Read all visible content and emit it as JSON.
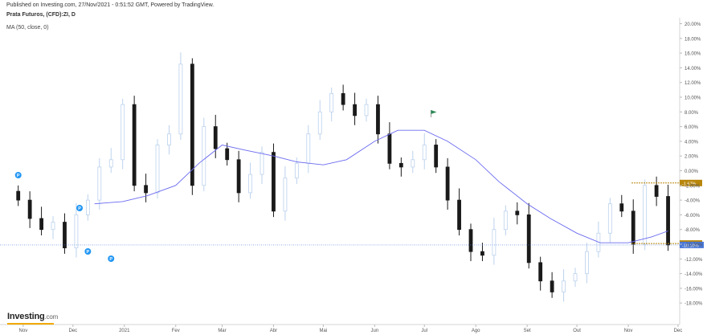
{
  "header": {
    "published": "Published on Investing.com, 27/Nov/2021 - 0:51:52 GMT, Powered by TradingView.",
    "instrument": "Prata Futuros, (CFD):ZI, D",
    "indicator": "MA (50, close, 0)"
  },
  "logo": {
    "brand": "Investing",
    "suffix": ".com"
  },
  "colors": {
    "up_candle": "#bcd2ee",
    "down_candle": "#1a1a1a",
    "ma_line": "#6a6af0",
    "last_price": "#4a78d8",
    "marker_level": "#b8860b",
    "event_marker": "#2196f3",
    "flag": "#2e8b57"
  },
  "chart_data": {
    "type": "line",
    "title": "Prata Futuros, (CFD):ZI, D",
    "y_unit": "%",
    "ylim": [
      -18.5,
      21
    ],
    "y_ticks": [
      "20.00%",
      "18.00%",
      "16.00%",
      "14.00%",
      "12.00%",
      "10.00%",
      "8.00%",
      "6.00%",
      "4.00%",
      "2.00%",
      "0.00%",
      "-2.00%",
      "-4.00%",
      "-6.00%",
      "-8.00%",
      "-10.00%",
      "-12.00%",
      "-14.00%",
      "-16.00%",
      "-18.00%"
    ],
    "x_labels": [
      "Nov",
      "Dec",
      "2021",
      "Fev",
      "Mar",
      "Abr",
      "Mai",
      "Jun",
      "Jul",
      "Ago",
      "Set",
      "Out",
      "Nov",
      "Dec"
    ],
    "series": [
      {
        "name": "Prata Futuros, (CFD):ZI, D",
        "style": "candles",
        "dates": [
          "2020-10-29",
          "2020-11-05",
          "2020-11-12",
          "2020-11-19",
          "2020-11-26",
          "2020-12-03",
          "2020-12-10",
          "2020-12-17",
          "2020-12-24",
          "2020-12-31",
          "2021-01-07",
          "2021-01-14",
          "2021-01-21",
          "2021-01-28",
          "2021-02-04",
          "2021-02-11",
          "2021-02-18",
          "2021-02-25",
          "2021-03-04",
          "2021-03-11",
          "2021-03-18",
          "2021-03-25",
          "2021-04-01",
          "2021-04-08",
          "2021-04-15",
          "2021-04-22",
          "2021-04-29",
          "2021-05-06",
          "2021-05-13",
          "2021-05-20",
          "2021-05-27",
          "2021-06-03",
          "2021-06-10",
          "2021-06-17",
          "2021-06-24",
          "2021-07-01",
          "2021-07-08",
          "2021-07-15",
          "2021-07-22",
          "2021-07-29",
          "2021-08-05",
          "2021-08-12",
          "2021-08-19",
          "2021-08-26",
          "2021-09-02",
          "2021-09-09",
          "2021-09-16",
          "2021-09-23",
          "2021-09-30",
          "2021-10-07",
          "2021-10-14",
          "2021-10-21",
          "2021-10-28",
          "2021-11-04",
          "2021-11-11",
          "2021-11-18",
          "2021-11-25"
        ],
        "values": [
          -4.0,
          -6.5,
          -8.0,
          -7.0,
          -10.5,
          -6.0,
          -4.0,
          0.5,
          1.5,
          9.0,
          -2.0,
          -3.0,
          3.5,
          5.0,
          14.5,
          -2.0,
          6.0,
          3.0,
          1.5,
          -3.0,
          -0.5,
          2.5,
          -5.5,
          -1.0,
          1.0,
          5.0,
          8.0,
          10.5,
          9.0,
          7.5,
          9.0,
          5.0,
          1.0,
          0.5,
          1.5,
          3.5,
          0.5,
          -4.0,
          -8.0,
          -11.0,
          -11.5,
          -8.0,
          -5.5,
          -6.0,
          -12.5,
          -15.0,
          -16.5,
          -15.0,
          -14.0,
          -11.0,
          -8.5,
          -4.5,
          -5.5,
          -10.0,
          -2.0,
          -3.5,
          -10.1
        ]
      },
      {
        "name": "MA (50, close, 0)",
        "style": "line",
        "dates": [
          "2020-12-14",
          "2020-12-31",
          "2021-01-15",
          "2021-02-01",
          "2021-02-15",
          "2021-03-01",
          "2021-03-15",
          "2021-04-01",
          "2021-04-15",
          "2021-05-01",
          "2021-05-15",
          "2021-06-01",
          "2021-06-15",
          "2021-07-01",
          "2021-07-15",
          "2021-08-01",
          "2021-08-15",
          "2021-09-01",
          "2021-09-15",
          "2021-10-01",
          "2021-10-15",
          "2021-11-01",
          "2021-11-15",
          "2021-11-25"
        ],
        "values": [
          -4.5,
          -4.2,
          -3.4,
          -2.0,
          1.0,
          3.5,
          2.8,
          2.0,
          1.2,
          0.8,
          1.5,
          4.0,
          5.5,
          5.5,
          4.0,
          1.5,
          -1.5,
          -4.5,
          -6.5,
          -8.5,
          -9.8,
          -9.8,
          -9.0,
          -8.2
        ]
      }
    ],
    "annotations": [
      {
        "type": "price-marker",
        "label": "-1.67%",
        "value": -1.67
      },
      {
        "type": "price-marker",
        "label": "-9.90%",
        "value": -9.9
      },
      {
        "type": "last-price",
        "label": "-10.10%",
        "value": -10.1
      },
      {
        "type": "event",
        "label": "P",
        "date": "2020-10-29"
      },
      {
        "type": "event",
        "label": "P",
        "date": "2020-12-05"
      },
      {
        "type": "event",
        "label": "P",
        "date": "2020-12-10"
      },
      {
        "type": "event",
        "label": "P",
        "date": "2020-12-24"
      },
      {
        "type": "flag",
        "date": "2021-07-05"
      }
    ],
    "grid": false,
    "legend": "top-left"
  }
}
